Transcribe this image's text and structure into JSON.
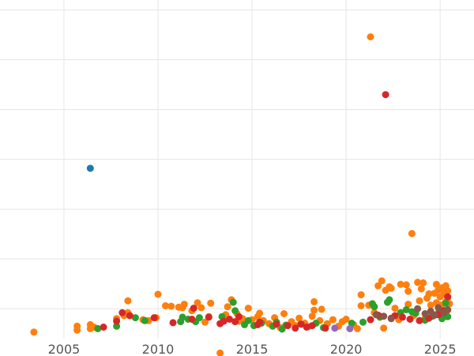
{
  "chart_data": {
    "type": "scatter",
    "title": "",
    "xlabel": "",
    "ylabel": "",
    "xlim": [
      2001.6,
      2026.8
    ],
    "ylim": [
      -0.06,
      0.62
    ],
    "grid": true,
    "legend": "none",
    "x_ticks": [
      {
        "value": 2005,
        "label": "2005"
      },
      {
        "value": 2010,
        "label": "2010"
      },
      {
        "value": 2015,
        "label": "2015"
      },
      {
        "value": 2020,
        "label": "2020"
      },
      {
        "value": 2025,
        "label": "2025"
      }
    ],
    "y_gridlines": [
      0,
      0.1,
      0.2,
      0.3,
      0.4,
      0.5,
      0.6
    ],
    "series": [
      {
        "color": "#1f77b4",
        "points": [
          [
            2006.4,
            0.282
          ]
        ]
      },
      {
        "color": "#ff7f0e",
        "points": [
          [
            2003.4,
            -0.047
          ],
          [
            2005.7,
            -0.035
          ],
          [
            2005.7,
            -0.043
          ],
          [
            2006.4,
            -0.032
          ],
          [
            2006.4,
            -0.04
          ],
          [
            2006.6,
            -0.037
          ],
          [
            2007.8,
            -0.02
          ],
          [
            2008.2,
            -0.014
          ],
          [
            2008.4,
            -0.008
          ],
          [
            2008.4,
            0.016
          ],
          [
            2009.2,
            -0.022
          ],
          [
            2009.5,
            -0.024
          ],
          [
            2009.9,
            -0.018
          ],
          [
            2010.0,
            0.029
          ],
          [
            2010.4,
            0.006
          ],
          [
            2010.7,
            0.005
          ],
          [
            2011.1,
            0.003
          ],
          [
            2011.3,
            0.002
          ],
          [
            2011.4,
            0.009
          ],
          [
            2011.8,
            -0.004
          ],
          [
            2012.1,
            0.012
          ],
          [
            2012.3,
            0.002
          ],
          [
            2012.5,
            -0.027
          ],
          [
            2012.7,
            -0.016
          ],
          [
            2012.8,
            0.011
          ],
          [
            2013.3,
            -0.089
          ],
          [
            2013.6,
            -0.012
          ],
          [
            2013.7,
            0.004
          ],
          [
            2013.9,
            0.018
          ],
          [
            2014.2,
            -0.01
          ],
          [
            2014.3,
            -0.025
          ],
          [
            2014.5,
            -0.02
          ],
          [
            2014.8,
            0.001
          ],
          [
            2015.0,
            -0.022
          ],
          [
            2015.3,
            -0.016
          ],
          [
            2015.4,
            -0.009
          ],
          [
            2015.6,
            -0.024
          ],
          [
            2015.9,
            -0.03
          ],
          [
            2016.2,
            -0.018
          ],
          [
            2016.5,
            -0.038
          ],
          [
            2016.7,
            -0.01
          ],
          [
            2017.1,
            -0.026
          ],
          [
            2017.3,
            -0.034
          ],
          [
            2017.5,
            -0.019
          ],
          [
            2017.8,
            -0.029
          ],
          [
            2018.0,
            -0.036
          ],
          [
            2018.2,
            -0.015
          ],
          [
            2018.3,
            -0.003
          ],
          [
            2018.3,
            0.014
          ],
          [
            2018.6,
            -0.024
          ],
          [
            2018.7,
            -0.001
          ],
          [
            2019.0,
            -0.03
          ],
          [
            2019.3,
            -0.022
          ],
          [
            2019.6,
            -0.035
          ],
          [
            2019.8,
            -0.026
          ],
          [
            2020.0,
            -0.021
          ],
          [
            2020.4,
            -0.032
          ],
          [
            2020.6,
            -0.04
          ],
          [
            2020.8,
            0.006
          ],
          [
            2020.8,
            0.028
          ],
          [
            2021.2,
            0.007
          ],
          [
            2021.3,
            0.546
          ],
          [
            2021.5,
            -0.008
          ],
          [
            2021.7,
            0.046
          ],
          [
            2021.8,
            -0.015
          ],
          [
            2021.9,
            0.056
          ],
          [
            2022.0,
            -0.039
          ],
          [
            2022.1,
            0.037
          ],
          [
            2022.3,
            0.044
          ],
          [
            2022.4,
            0.041
          ],
          [
            2022.6,
            0.001
          ],
          [
            2022.8,
            -0.022
          ],
          [
            2022.9,
            0.049
          ],
          [
            2023.2,
            0.048
          ],
          [
            2023.3,
            0.035
          ],
          [
            2023.3,
            0.009
          ],
          [
            2023.5,
            0.151
          ],
          [
            2023.6,
            -0.014
          ],
          [
            2023.8,
            0.053
          ],
          [
            2023.9,
            0.016
          ],
          [
            2024.0,
            0.04
          ],
          [
            2024.1,
            0.052
          ],
          [
            2024.2,
            -0.019
          ],
          [
            2024.3,
            0.021
          ],
          [
            2024.4,
            0.03
          ],
          [
            2024.5,
            0.007
          ],
          [
            2024.6,
            -0.011
          ],
          [
            2024.7,
            0.031
          ],
          [
            2024.8,
            0.049
          ],
          [
            2024.8,
            0.012
          ],
          [
            2024.9,
            0.038
          ],
          [
            2025.0,
            -0.007
          ],
          [
            2025.0,
            0.024
          ],
          [
            2025.1,
            0.008
          ],
          [
            2025.1,
            0.042
          ],
          [
            2025.2,
            -0.016
          ],
          [
            2025.2,
            0.03
          ],
          [
            2025.3,
            0.046
          ],
          [
            2025.3,
            0.014
          ],
          [
            2025.4,
            0.022
          ],
          [
            2025.4,
            -0.003
          ],
          [
            2025.4,
            0.036
          ],
          [
            2025.5,
            0.01
          ]
        ]
      },
      {
        "color": "#2ca02c",
        "points": [
          [
            2006.8,
            -0.04
          ],
          [
            2007.8,
            -0.035
          ],
          [
            2008.8,
            -0.018
          ],
          [
            2009.3,
            -0.024
          ],
          [
            2011.2,
            -0.026
          ],
          [
            2011.3,
            -0.017
          ],
          [
            2011.6,
            -0.021
          ],
          [
            2012.0,
            -0.026
          ],
          [
            2012.2,
            -0.018
          ],
          [
            2013.4,
            -0.016
          ],
          [
            2014.0,
            0.013
          ],
          [
            2014.1,
            -0.004
          ],
          [
            2014.6,
            -0.032
          ],
          [
            2014.8,
            -0.024
          ],
          [
            2015.1,
            -0.034
          ],
          [
            2015.5,
            -0.029
          ],
          [
            2016.1,
            -0.035
          ],
          [
            2016.3,
            -0.027
          ],
          [
            2016.6,
            -0.041
          ],
          [
            2016.8,
            -0.033
          ],
          [
            2017.6,
            -0.031
          ],
          [
            2018.4,
            -0.029
          ],
          [
            2018.8,
            -0.038
          ],
          [
            2020.3,
            -0.029
          ],
          [
            2020.9,
            -0.027
          ],
          [
            2021.4,
            0.01
          ],
          [
            2021.5,
            0.004
          ],
          [
            2021.8,
            -0.017
          ],
          [
            2022.2,
            0.013
          ],
          [
            2022.3,
            0.018
          ],
          [
            2022.9,
            -0.008
          ],
          [
            2023.2,
            -0.002
          ],
          [
            2023.5,
            -0.006
          ],
          [
            2023.7,
            -0.009
          ],
          [
            2024.2,
            -0.023
          ],
          [
            2024.6,
            -0.015
          ],
          [
            2024.9,
            -0.009
          ],
          [
            2025.1,
            -0.02
          ],
          [
            2025.3,
            0.011
          ],
          [
            2025.4,
            -0.016
          ]
        ]
      },
      {
        "color": "#d62728",
        "points": [
          [
            2007.1,
            -0.037
          ],
          [
            2007.8,
            -0.025
          ],
          [
            2008.1,
            -0.008
          ],
          [
            2008.5,
            -0.014
          ],
          [
            2009.8,
            -0.018
          ],
          [
            2010.8,
            -0.028
          ],
          [
            2011.8,
            -0.021
          ],
          [
            2011.9,
            0.001
          ],
          [
            2012.7,
            -0.017
          ],
          [
            2013.3,
            -0.03
          ],
          [
            2013.5,
            -0.025
          ],
          [
            2013.8,
            -0.021
          ],
          [
            2014.1,
            -0.026
          ],
          [
            2014.3,
            -0.016
          ],
          [
            2015.3,
            -0.032
          ],
          [
            2015.4,
            -0.027
          ],
          [
            2016.3,
            -0.031
          ],
          [
            2016.9,
            -0.034
          ],
          [
            2017.3,
            -0.039
          ],
          [
            2017.6,
            -0.031
          ],
          [
            2017.9,
            -0.037
          ],
          [
            2018.2,
            -0.034
          ],
          [
            2018.9,
            -0.039
          ],
          [
            2021.3,
            -0.022
          ],
          [
            2021.7,
            -0.013
          ],
          [
            2022.1,
            0.43
          ],
          [
            2022.4,
            -0.019
          ],
          [
            2022.6,
            -0.014
          ],
          [
            2023.0,
            -0.017
          ],
          [
            2023.4,
            -0.021
          ],
          [
            2023.9,
            -0.024
          ],
          [
            2024.4,
            -0.019
          ],
          [
            2024.9,
            -0.012
          ],
          [
            2025.2,
            -0.004
          ],
          [
            2025.4,
            0.024
          ]
        ]
      },
      {
        "color": "#9467bd",
        "points": [
          [
            2019.4,
            -0.039
          ],
          [
            2020.2,
            -0.04
          ]
        ]
      },
      {
        "color": "#8c564b",
        "points": [
          [
            2021.6,
            -0.012
          ],
          [
            2022.0,
            -0.015
          ],
          [
            2022.4,
            -0.02
          ],
          [
            2023.8,
            0.0
          ],
          [
            2024.2,
            -0.01
          ],
          [
            2024.5,
            -0.005
          ],
          [
            2024.7,
            -0.013
          ],
          [
            2024.9,
            0.002
          ],
          [
            2025.2,
            -0.008
          ],
          [
            2025.4,
            -0.002
          ]
        ]
      }
    ]
  }
}
